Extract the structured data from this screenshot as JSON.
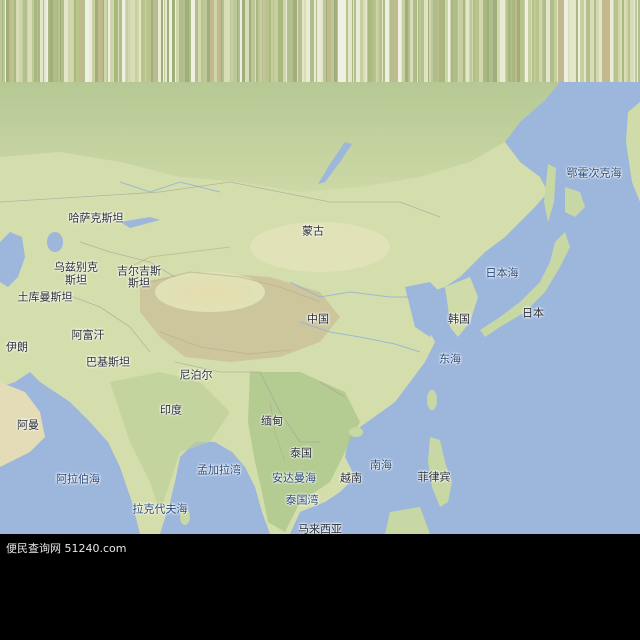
{
  "map": {
    "labels": [
      {
        "id": "kazakhstan",
        "text": "哈萨克斯坦",
        "kind": "country"
      },
      {
        "id": "mongolia",
        "text": "蒙古",
        "kind": "country"
      },
      {
        "id": "uzbekistan_1",
        "text": "乌兹别克",
        "kind": "country"
      },
      {
        "id": "uzbekistan_2",
        "text": "斯坦",
        "kind": "country"
      },
      {
        "id": "kyrgyzstan_1",
        "text": "吉尔吉斯",
        "kind": "country"
      },
      {
        "id": "kyrgyzstan_2",
        "text": "斯坦",
        "kind": "country"
      },
      {
        "id": "turkmenistan",
        "text": "土库曼斯坦",
        "kind": "country"
      },
      {
        "id": "afghanistan",
        "text": "阿富汗",
        "kind": "country"
      },
      {
        "id": "iran",
        "text": "伊朗",
        "kind": "country"
      },
      {
        "id": "pakistan",
        "text": "巴基斯坦",
        "kind": "country"
      },
      {
        "id": "nepal",
        "text": "尼泊尔",
        "kind": "country"
      },
      {
        "id": "china",
        "text": "中国",
        "kind": "country"
      },
      {
        "id": "india",
        "text": "印度",
        "kind": "country"
      },
      {
        "id": "oman",
        "text": "阿曼",
        "kind": "country"
      },
      {
        "id": "arabian_sea",
        "text": "阿拉伯海",
        "kind": "sea"
      },
      {
        "id": "bay_of_bengal",
        "text": "孟加拉湾",
        "kind": "sea"
      },
      {
        "id": "laccadive_sea",
        "text": "拉克代夫海",
        "kind": "sea"
      },
      {
        "id": "myanmar",
        "text": "缅甸",
        "kind": "country"
      },
      {
        "id": "thailand",
        "text": "泰国",
        "kind": "country"
      },
      {
        "id": "andaman_sea",
        "text": "安达曼海",
        "kind": "sea"
      },
      {
        "id": "vietnam",
        "text": "越南",
        "kind": "country"
      },
      {
        "id": "gulf_of_thailand",
        "text": "泰国湾",
        "kind": "sea"
      },
      {
        "id": "malaysia",
        "text": "马来西亚",
        "kind": "country"
      },
      {
        "id": "south_china_sea",
        "text": "南海",
        "kind": "sea"
      },
      {
        "id": "philippines",
        "text": "菲律宾",
        "kind": "country"
      },
      {
        "id": "east_china_sea",
        "text": "东海",
        "kind": "sea"
      },
      {
        "id": "korea",
        "text": "韩国",
        "kind": "country"
      },
      {
        "id": "japan",
        "text": "日本",
        "kind": "country"
      },
      {
        "id": "sea_of_japan",
        "text": "日本海",
        "kind": "sea"
      },
      {
        "id": "sea_of_okhotsk",
        "text": "鄂霍次克海",
        "kind": "sea"
      }
    ]
  },
  "watermark": "便民查询网 51240.com",
  "colors": {
    "ocean": "#9cb6dc",
    "land_light": "#dfe6b8",
    "land_green": "#b9cf95",
    "mountain": "#cdbf9c",
    "black_bar": "#000000"
  }
}
